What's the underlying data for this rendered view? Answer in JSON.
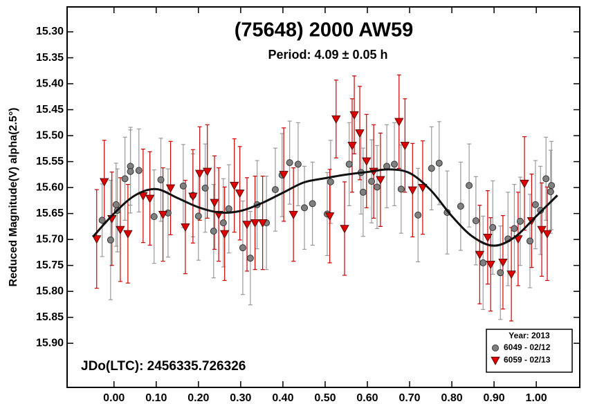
{
  "chart_data": {
    "type": "scatter",
    "title": "(75648) 2000 AW59",
    "subtitle": "Period: 4.09 ± 0.05 h",
    "y_label": "Reduced Magnitude(V) alpha(2.5°)",
    "annotation": "JDo(LTC): 2456335.726326",
    "legend_title": "Year: 2013",
    "legend_position": "lower right",
    "y_inverted": true,
    "xlim": [
      -0.111,
      1.103
    ],
    "ylim": [
      15.252,
      15.985
    ],
    "xticks": [
      {
        "value": 0,
        "label": "0.00"
      },
      {
        "value": 0.1,
        "label": "0.10"
      },
      {
        "value": 0.2,
        "label": "0.20"
      },
      {
        "value": 0.3,
        "label": "0.30"
      },
      {
        "value": 0.4,
        "label": "0.40"
      },
      {
        "value": 0.5,
        "label": "0.50"
      },
      {
        "value": 0.6,
        "label": "0.60"
      },
      {
        "value": 0.7,
        "label": "0.70"
      },
      {
        "value": 0.8,
        "label": "0.80"
      },
      {
        "value": 0.9,
        "label": "0.90"
      },
      {
        "value": 1,
        "label": "1.00"
      }
    ],
    "yticks": [
      {
        "value": 15.3,
        "label": "15.30"
      },
      15.35,
      {
        "value": 15.4,
        "label": "15.40"
      },
      15.45,
      {
        "value": 15.5,
        "label": "15.50"
      },
      15.55,
      {
        "value": 15.6,
        "label": "15.60"
      },
      15.65,
      {
        "value": 15.7,
        "label": "15.70"
      },
      15.75,
      {
        "value": 15.8,
        "label": "15.80"
      },
      15.85,
      {
        "value": 15.9,
        "label": "15.90"
      }
    ],
    "series": [
      {
        "name": "6049 - 02/12",
        "color": "#808080",
        "error_color": "#999999",
        "marker": "circle",
        "x": [
          -0.028,
          -0.008,
          0.005,
          0.008,
          0.026,
          0.039,
          0.039,
          0.059,
          0.095,
          0.111,
          0.128,
          0.164,
          0.187,
          0.2,
          0.216,
          0.236,
          0.259,
          0.272,
          0.305,
          0.323,
          0.339,
          0.361,
          0.382,
          0.398,
          0.416,
          0.436,
          0.451,
          0.47,
          0.505,
          0.513,
          0.557,
          0.585,
          0.59,
          0.61,
          0.623,
          0.646,
          0.664,
          0.68,
          0.72,
          0.752,
          0.77,
          0.789,
          0.821,
          0.841,
          0.857,
          0.874,
          0.897,
          0.915,
          0.933,
          0.948,
          0.962,
          0.985,
          0.998,
          1.01,
          1.023,
          1.036,
          1.034
        ],
        "values": [
          15.663,
          15.701,
          15.633,
          15.644,
          15.583,
          15.559,
          15.569,
          15.567,
          15.656,
          15.585,
          15.649,
          15.597,
          15.615,
          15.655,
          15.601,
          15.684,
          15.668,
          15.641,
          15.716,
          15.736,
          15.633,
          15.668,
          15.604,
          15.576,
          15.552,
          15.555,
          15.639,
          15.631,
          15.651,
          15.589,
          15.555,
          15.571,
          15.609,
          15.588,
          15.599,
          15.559,
          15.555,
          15.603,
          15.653,
          15.563,
          15.553,
          15.648,
          15.636,
          15.596,
          15.664,
          15.745,
          15.677,
          15.764,
          15.699,
          15.679,
          15.665,
          15.703,
          15.633,
          15.644,
          15.583,
          15.596,
          15.608
        ],
        "errors": [
          0.07,
          0.115,
          0.08,
          0.08,
          0.08,
          0.075,
          0.08,
          0.08,
          0.09,
          0.08,
          0.085,
          0.08,
          0.08,
          0.085,
          0.085,
          0.09,
          0.085,
          0.085,
          0.09,
          0.09,
          0.085,
          0.09,
          0.08,
          0.08,
          0.08,
          0.08,
          0.08,
          0.08,
          0.08,
          0.08,
          0.08,
          0.08,
          0.085,
          0.08,
          0.08,
          0.08,
          0.08,
          0.085,
          0.09,
          0.08,
          0.08,
          0.08,
          0.085,
          0.08,
          0.085,
          0.09,
          0.09,
          0.09,
          0.09,
          0.085,
          0.085,
          0.09,
          0.085,
          0.085,
          0.08,
          0.085,
          0.08
        ]
      },
      {
        "name": "6059 - 02/13",
        "color": "#dd0000",
        "error_color": "#cc0000",
        "marker": "triangle-down",
        "x": [
          -0.041,
          -0.023,
          -0.005,
          0.015,
          0.033,
          0.069,
          0.085,
          0.116,
          0.134,
          0.169,
          0.187,
          0.203,
          0.221,
          0.238,
          0.248,
          0.262,
          0.285,
          0.298,
          0.315,
          0.334,
          0.352,
          0.402,
          0.425,
          0.511,
          0.526,
          0.546,
          0.564,
          0.569,
          0.582,
          0.598,
          0.615,
          0.631,
          0.675,
          0.689,
          0.707,
          0.731,
          0.866,
          0.885,
          0.892,
          0.921,
          0.941,
          0.957,
          0.972,
          0.989,
          1.013,
          1.026
        ],
        "values": [
          15.699,
          15.589,
          15.66,
          15.681,
          15.689,
          15.616,
          15.621,
          15.652,
          15.601,
          15.676,
          15.617,
          15.573,
          15.569,
          15.629,
          15.652,
          15.689,
          15.596,
          15.611,
          15.671,
          15.668,
          15.668,
          15.575,
          15.652,
          15.655,
          15.468,
          15.679,
          15.519,
          15.46,
          15.495,
          15.549,
          15.569,
          15.585,
          15.473,
          15.519,
          15.605,
          15.6,
          15.729,
          15.696,
          15.748,
          15.744,
          15.767,
          15.699,
          15.592,
          15.664,
          15.681,
          15.689
        ],
        "errors": [
          0.095,
          0.08,
          0.09,
          0.1,
          0.095,
          0.09,
          0.09,
          0.09,
          0.09,
          0.09,
          0.09,
          0.09,
          0.09,
          0.09,
          0.09,
          0.09,
          0.09,
          0.09,
          0.09,
          0.09,
          0.09,
          0.09,
          0.09,
          0.09,
          0.075,
          0.09,
          0.09,
          0.075,
          0.09,
          0.09,
          0.09,
          0.09,
          0.09,
          0.09,
          0.09,
          0.09,
          0.095,
          0.09,
          0.09,
          0.09,
          0.09,
          0.09,
          0.09,
          0.09,
          0.09,
          0.09
        ]
      }
    ],
    "fit_curve": {
      "color": "#111111",
      "x": [
        -0.05,
        0,
        0.05,
        0.1,
        0.15,
        0.2,
        0.25,
        0.3,
        0.35,
        0.4,
        0.45,
        0.5,
        0.55,
        0.6,
        0.65,
        0.7,
        0.75,
        0.8,
        0.85,
        0.9,
        0.95,
        1,
        1.05
      ],
      "values": [
        15.695,
        15.65,
        15.615,
        15.603,
        15.62,
        15.638,
        15.648,
        15.645,
        15.63,
        15.61,
        15.59,
        15.582,
        15.575,
        15.57,
        15.565,
        15.572,
        15.605,
        15.655,
        15.695,
        15.712,
        15.695,
        15.655,
        15.615
      ]
    }
  }
}
